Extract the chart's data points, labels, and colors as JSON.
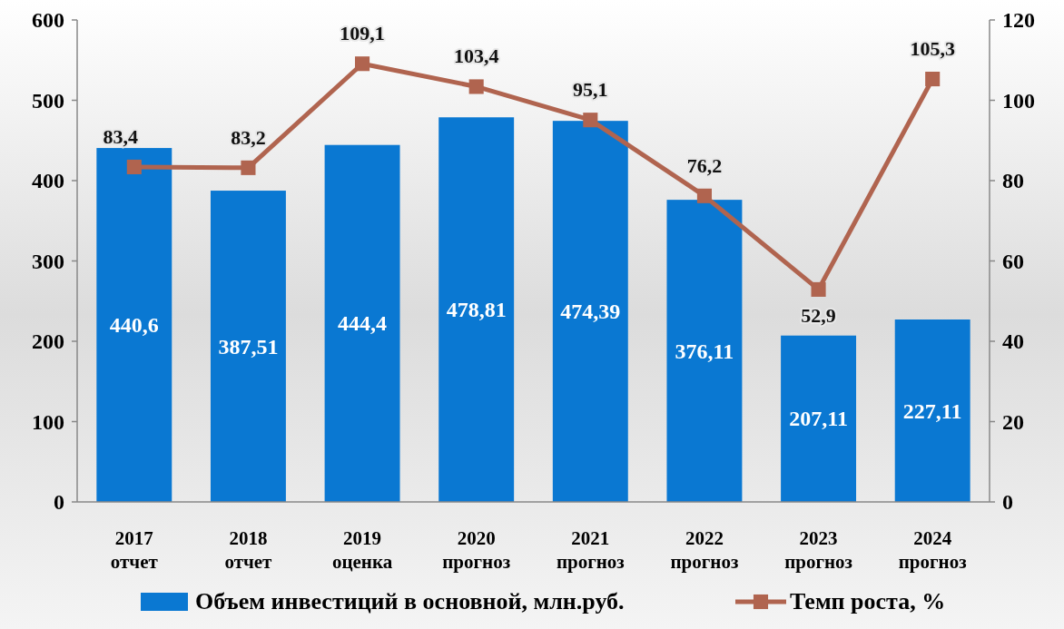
{
  "chart_data": {
    "type": "bar",
    "categories": [
      "2017\nотчет",
      "2018\nотчет",
      "2019\nоценка",
      "2020\nпрогноз",
      "2021\nпрогноз",
      "2022\nпрогноз",
      "2023\nпрогноз",
      "2024\nпрогноз"
    ],
    "series": [
      {
        "name": "Объем инвестиций в основной, млн.руб.",
        "color": "#0a78d2",
        "values": [
          440.6,
          387.51,
          444.4,
          478.81,
          474.39,
          376.11,
          207.11,
          227.11
        ],
        "value_labels": [
          "440,6",
          "387,51",
          "444,4",
          "478,81",
          "474,39",
          "376,11",
          "207,11",
          "227,11"
        ]
      },
      {
        "name": "Темп роста, %",
        "type": "line",
        "axis": "y2",
        "color": "#b0644f",
        "marker": "square",
        "values": [
          83.4,
          83.2,
          109.1,
          103.4,
          95.1,
          76.2,
          52.9,
          105.3
        ],
        "value_labels": [
          "83,4",
          "83,2",
          "109,1",
          "103,4",
          "95,1",
          "76,2",
          "52,9",
          "105,3"
        ]
      }
    ],
    "ylim": [
      0,
      600
    ],
    "yticks": [
      0,
      100,
      200,
      300,
      400,
      500,
      600
    ],
    "y2lim": [
      0,
      120
    ],
    "y2ticks": [
      0,
      20,
      40,
      60,
      80,
      100,
      120
    ],
    "grid": false,
    "legend": "bottom"
  }
}
